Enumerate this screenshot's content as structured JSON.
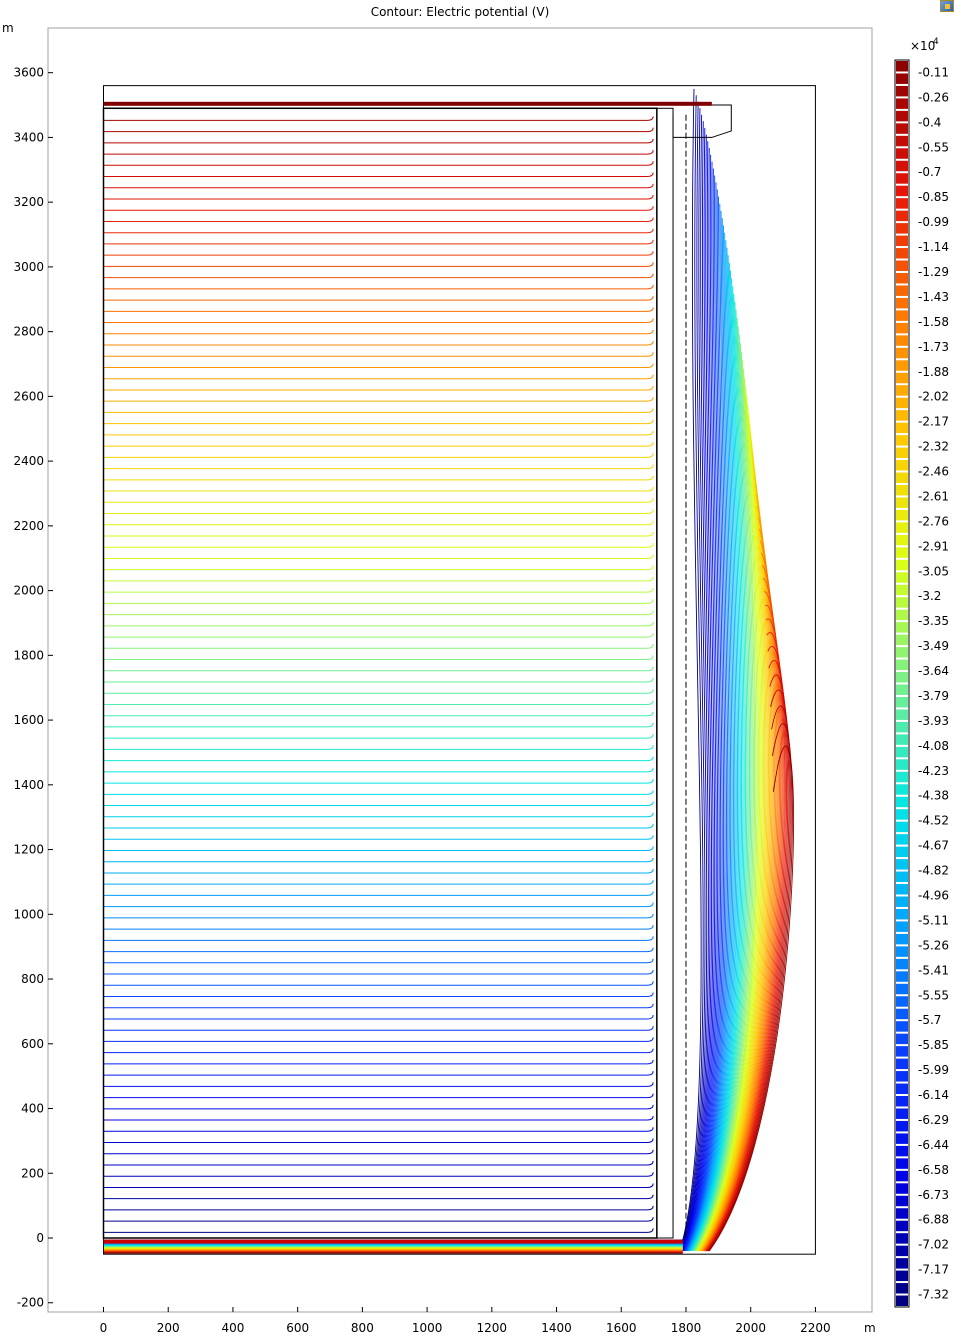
{
  "chart_data": {
    "type": "contour",
    "title": "Contour: Electric potential (V)",
    "x_unit_label": "m",
    "y_unit_label": "m",
    "xlim": [
      -300,
      2300
    ],
    "ylim": [
      -230,
      3760
    ],
    "x_ticks": [
      0,
      200,
      400,
      600,
      800,
      1000,
      1200,
      1400,
      1600,
      1800,
      2000,
      2200
    ],
    "y_ticks": [
      -200,
      0,
      200,
      400,
      600,
      800,
      1000,
      1200,
      1400,
      1600,
      1800,
      2000,
      2200,
      2400,
      2600,
      2800,
      3000,
      3200,
      3400,
      3600
    ],
    "grid": false,
    "colorbar": {
      "multiplier_label": "×10",
      "multiplier_exponent": "4",
      "position": "right",
      "levels": [
        "-0.11",
        "-0.26",
        "-0.4",
        "-0.55",
        "-0.7",
        "-0.85",
        "-0.99",
        "-1.14",
        "-1.29",
        "-1.43",
        "-1.58",
        "-1.73",
        "-1.88",
        "-2.02",
        "-2.17",
        "-2.32",
        "-2.46",
        "-2.61",
        "-2.76",
        "-2.91",
        "-3.05",
        "-3.2",
        "-3.35",
        "-3.49",
        "-3.64",
        "-3.79",
        "-3.93",
        "-4.08",
        "-4.23",
        "-4.38",
        "-4.52",
        "-4.67",
        "-4.82",
        "-4.96",
        "-5.11",
        "-5.26",
        "-5.41",
        "-5.55",
        "-5.7",
        "-5.85",
        "-5.99",
        "-6.14",
        "-6.29",
        "-6.44",
        "-6.58",
        "-6.73",
        "-6.88",
        "-7.02",
        "-7.17",
        "-7.32"
      ]
    },
    "geometry": {
      "outer_domain": {
        "x": [
          0,
          2200
        ],
        "y": [
          -50,
          3560
        ]
      },
      "top_plate_y": 3500,
      "left_block": {
        "x": [
          0,
          1710
        ],
        "y": [
          0,
          3490
        ]
      },
      "strip_x": [
        1710,
        1760
      ],
      "dashed_line_x": 1800,
      "step_x": [
        1760,
        1880,
        1940
      ],
      "bottom_y": -50
    },
    "contour_count": 100
  },
  "colors": {
    "axis": "#000000",
    "frame": "#a0a0a0",
    "background": "#ffffff"
  }
}
